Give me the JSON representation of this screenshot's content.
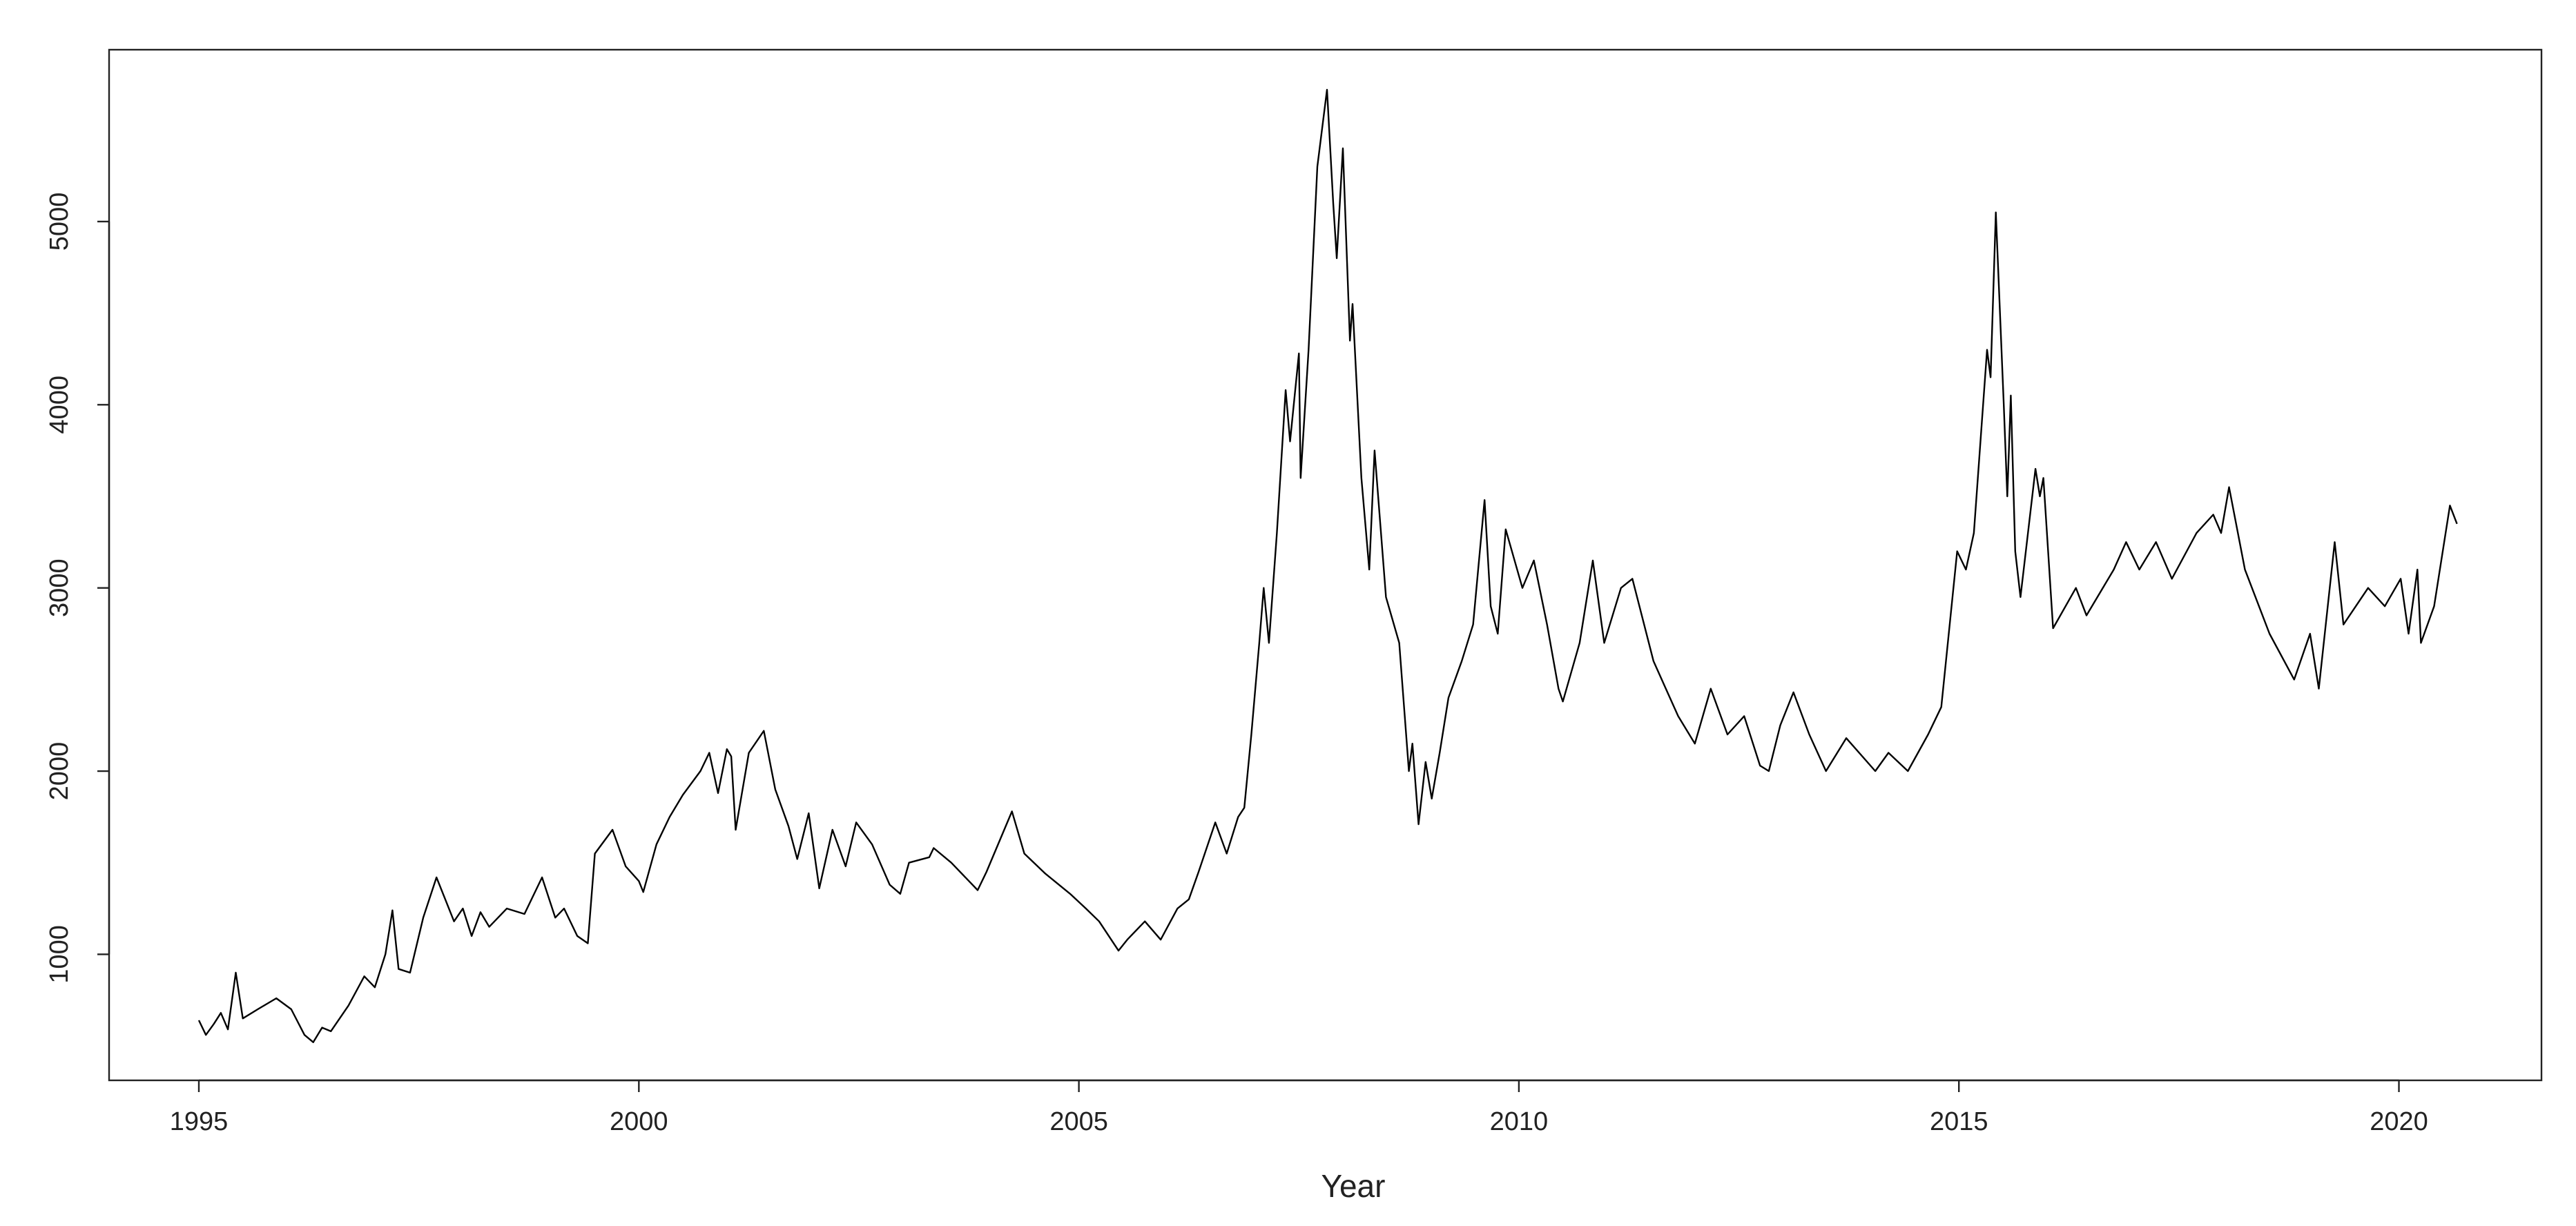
{
  "chart_data": {
    "type": "line",
    "xlabel": "Year",
    "xlim": [
      1993.98,
      2021.62
    ],
    "ylim": [
      312,
      5938
    ],
    "xticks": [
      1995,
      2000,
      2005,
      2010,
      2015,
      2020
    ],
    "yticks": [
      1000,
      2000,
      3000,
      4000,
      5000
    ],
    "grid": false,
    "x": [
      1995.0,
      1995.08,
      1995.17,
      1995.25,
      1995.33,
      1995.42,
      1995.5,
      1995.67,
      1995.88,
      1996.05,
      1996.2,
      1996.3,
      1996.4,
      1996.5,
      1996.7,
      1996.88,
      1997.0,
      1997.12,
      1997.2,
      1997.27,
      1997.4,
      1997.55,
      1997.7,
      1997.8,
      1997.9,
      1998.0,
      1998.1,
      1998.2,
      1998.3,
      1998.5,
      1998.7,
      1998.9,
      1999.05,
      1999.15,
      1999.3,
      1999.42,
      1999.5,
      1999.7,
      1999.85,
      2000.0,
      2000.05,
      2000.2,
      2000.35,
      2000.5,
      2000.7,
      2000.8,
      2000.9,
      2001.0,
      2001.05,
      2001.1,
      2001.25,
      2001.42,
      2001.55,
      2001.7,
      2001.8,
      2001.93,
      2002.05,
      2002.2,
      2002.35,
      2002.47,
      2002.65,
      2002.85,
      2002.97,
      2003.07,
      2003.3,
      2003.35,
      2003.55,
      2003.85,
      2003.95,
      2004.24,
      2004.38,
      2004.62,
      2004.9,
      2005.08,
      2005.23,
      2005.45,
      2005.55,
      2005.75,
      2005.93,
      2006.12,
      2006.25,
      2006.36,
      2006.55,
      2006.68,
      2006.81,
      2006.88,
      2006.96,
      2007.05,
      2007.1,
      2007.16,
      2007.25,
      2007.35,
      2007.4,
      2007.5,
      2007.52,
      2007.61,
      2007.71,
      2007.82,
      2007.89,
      2007.93,
      2008.0,
      2008.08,
      2008.11,
      2008.21,
      2008.3,
      2008.36,
      2008.49,
      2008.64,
      2008.75,
      2008.79,
      2008.86,
      2008.94,
      2009.01,
      2009.1,
      2009.2,
      2009.35,
      2009.48,
      2009.61,
      2009.68,
      2009.76,
      2009.85,
      2010.04,
      2010.17,
      2010.32,
      2010.45,
      2010.5,
      2010.69,
      2010.84,
      2010.97,
      2011.16,
      2011.29,
      2011.53,
      2011.81,
      2012.0,
      2012.18,
      2012.37,
      2012.56,
      2012.74,
      2012.84,
      2012.97,
      2013.12,
      2013.3,
      2013.49,
      2013.72,
      2014.05,
      2014.2,
      2014.42,
      2014.65,
      2014.8,
      2014.98,
      2015.08,
      2015.17,
      2015.32,
      2015.36,
      2015.42,
      2015.51,
      2015.55,
      2015.59,
      2015.64,
      2015.7,
      2015.87,
      2015.92,
      2015.96,
      2016.07,
      2016.33,
      2016.45,
      2016.76,
      2016.9,
      2017.05,
      2017.24,
      2017.42,
      2017.7,
      2017.89,
      2017.98,
      2018.07,
      2018.25,
      2018.53,
      2018.81,
      2018.99,
      2019.09,
      2019.27,
      2019.37,
      2019.65,
      2019.84,
      2020.02,
      2020.11,
      2020.21,
      2020.25,
      2020.4,
      2020.58,
      2020.66
    ],
    "series": [
      {
        "color": "#000000",
        "values": [
          640,
          560,
          620,
          680,
          590,
          900,
          650,
          700,
          760,
          700,
          560,
          520,
          600,
          580,
          720,
          880,
          820,
          1000,
          1240,
          920,
          900,
          1200,
          1420,
          1300,
          1180,
          1250,
          1100,
          1230,
          1150,
          1250,
          1220,
          1420,
          1200,
          1250,
          1100,
          1060,
          1550,
          1680,
          1480,
          1400,
          1340,
          1600,
          1750,
          1870,
          2000,
          2100,
          1880,
          2120,
          2080,
          1680,
          2100,
          2220,
          1900,
          1700,
          1520,
          1770,
          1360,
          1680,
          1480,
          1720,
          1600,
          1380,
          1330,
          1500,
          1530,
          1580,
          1500,
          1350,
          1450,
          1780,
          1550,
          1440,
          1330,
          1250,
          1180,
          1020,
          1080,
          1180,
          1080,
          1250,
          1300,
          1450,
          1720,
          1550,
          1750,
          1800,
          2200,
          2700,
          3000,
          2700,
          3300,
          4080,
          3800,
          4280,
          3600,
          4300,
          5300,
          5720,
          5100,
          4800,
          5400,
          4350,
          4550,
          3600,
          3100,
          3750,
          2950,
          2700,
          2000,
          2150,
          1710,
          2050,
          1850,
          2100,
          2400,
          2600,
          2800,
          3480,
          2900,
          2750,
          3320,
          3000,
          3150,
          2800,
          2450,
          2380,
          2700,
          3150,
          2700,
          3000,
          3050,
          2600,
          2300,
          2150,
          2450,
          2200,
          2300,
          2030,
          2000,
          2250,
          2430,
          2200,
          2000,
          2180,
          2000,
          2100,
          2000,
          2200,
          2350,
          3200,
          3100,
          3300,
          4300,
          4150,
          5050,
          4000,
          3500,
          4050,
          3200,
          2950,
          3650,
          3500,
          3600,
          2780,
          3000,
          2850,
          3100,
          3250,
          3100,
          3250,
          3050,
          3300,
          3400,
          3300,
          3550,
          3100,
          2750,
          2500,
          2750,
          2450,
          3250,
          2800,
          3000,
          2900,
          3050,
          2750,
          3100,
          2700,
          2900,
          3450,
          3350
        ]
      }
    ]
  }
}
